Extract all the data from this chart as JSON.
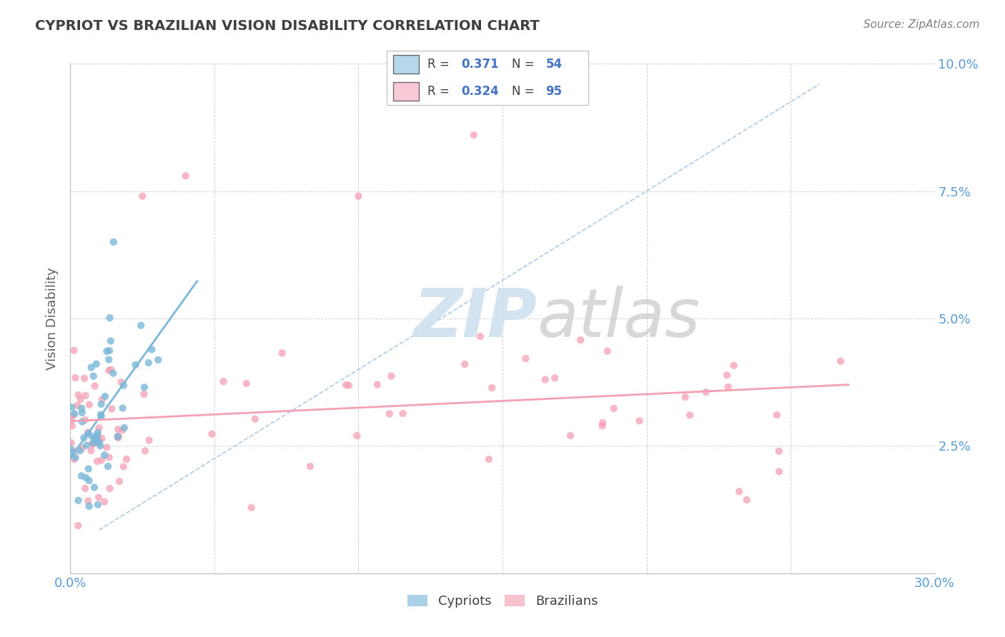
{
  "title": "CYPRIOT VS BRAZILIAN VISION DISABILITY CORRELATION CHART",
  "source": "Source: ZipAtlas.com",
  "ylabel": "Vision Disability",
  "xlim": [
    0.0,
    0.3
  ],
  "ylim": [
    0.0,
    0.1
  ],
  "xtick_positions": [
    0.0,
    0.05,
    0.1,
    0.15,
    0.2,
    0.25,
    0.3
  ],
  "xtick_labels": [
    "0.0%",
    "",
    "",
    "",
    "",
    "",
    "30.0%"
  ],
  "ytick_positions": [
    0.0,
    0.025,
    0.05,
    0.075,
    0.1
  ],
  "ytick_labels": [
    "",
    "2.5%",
    "5.0%",
    "7.5%",
    "10.0%"
  ],
  "cypriot_color": "#7ab8d9",
  "brazilian_color": "#f4a0b5",
  "cypriot_R": 0.371,
  "cypriot_N": 54,
  "brazilian_R": 0.324,
  "brazilian_N": 95,
  "background_color": "#ffffff",
  "grid_color": "#cccccc",
  "title_color": "#404040",
  "axis_label_color": "#5b9bd5",
  "source_color": "#808080",
  "ylabel_color": "#606060",
  "legend_text_color": "#404040",
  "legend_value_color": "#4472c4",
  "watermark_zip_color": "#cfe0ef",
  "watermark_atlas_color": "#c8c8c8",
  "dashed_line_color": "#a0c0e0"
}
